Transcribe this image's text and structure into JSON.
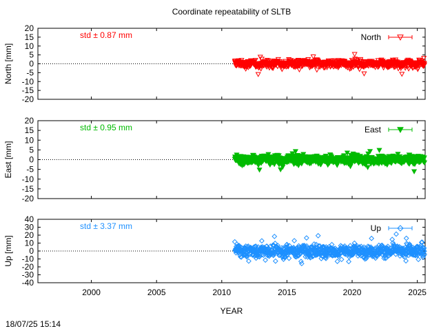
{
  "title": "Coordinate repeatability of SLTB",
  "footer_timestamp": "18/07/25 15:14",
  "chart_data": {
    "type": "scatter",
    "title": "Coordinate repeatability of SLTB",
    "xlabel": "YEAR",
    "xlim": [
      1995.9,
      2025.6
    ],
    "xticks": [
      2000,
      2005,
      2010,
      2015,
      2020,
      2025
    ],
    "panels": [
      {
        "ylabel": "North [mm]",
        "ylim": [
          -20,
          20
        ],
        "yticks": [
          -20,
          -15,
          -10,
          -5,
          0,
          5,
          10,
          15,
          20
        ],
        "legend": "North",
        "legend_position": "top-right",
        "stat_label": "std ± 0.87 mm",
        "color": "#ff0000",
        "marker": "triangle-down-open",
        "x_range": [
          2011.0,
          2025.55
        ],
        "std": 0.87
      },
      {
        "ylabel": "East [mm]",
        "ylim": [
          -20,
          20
        ],
        "yticks": [
          -20,
          -15,
          -10,
          -5,
          0,
          5,
          10,
          15,
          20
        ],
        "legend": "East",
        "legend_position": "top-right",
        "stat_label": "std ± 0.95 mm",
        "color": "#00bb00",
        "marker": "triangle-down-filled",
        "x_range": [
          2011.0,
          2025.55
        ],
        "std": 0.95
      },
      {
        "ylabel": "Up [mm]",
        "ylim": [
          -40,
          40
        ],
        "yticks": [
          -40,
          -30,
          -20,
          -10,
          0,
          10,
          20,
          30,
          40
        ],
        "legend": "Up",
        "legend_position": "top-right",
        "stat_label": "std ± 3.37 mm",
        "color": "#1e90ff",
        "marker": "diamond-open",
        "x_range": [
          2011.0,
          2025.55
        ],
        "std": 3.37
      }
    ]
  }
}
